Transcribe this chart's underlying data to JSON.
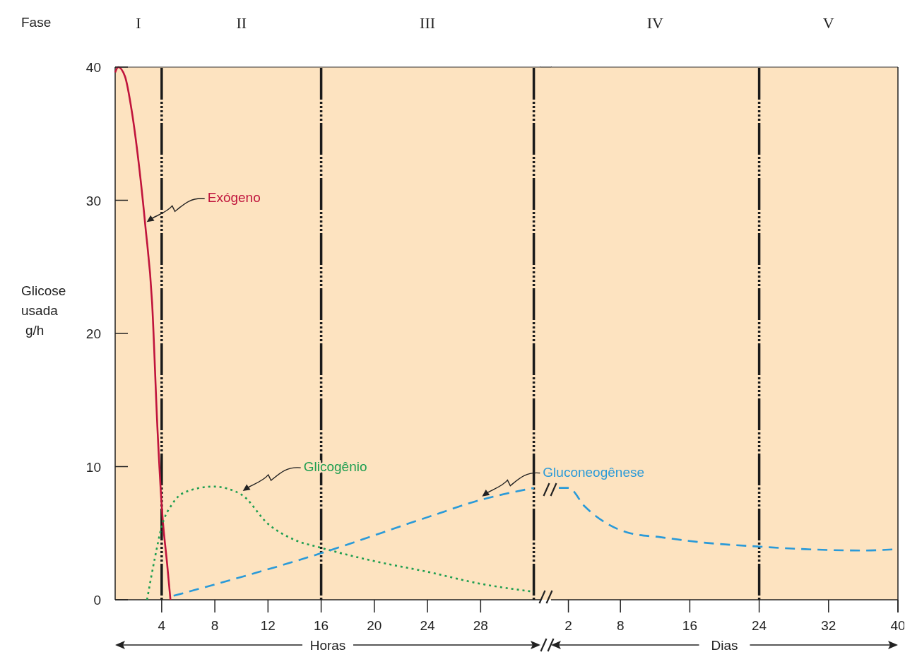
{
  "chart_data": [
    {
      "type": "line",
      "ylabel": "Glicose usada g/h",
      "xlabel": "Horas",
      "annotations": [
        "Fase",
        "I",
        "II",
        "III"
      ],
      "xlim": [
        0.5,
        32.5
      ],
      "xticks": [
        4,
        8,
        12,
        16,
        20,
        24,
        28
      ],
      "ylim": [
        0,
        40
      ],
      "yticks": [
        0,
        10,
        20,
        30,
        40
      ],
      "ref_lines": [
        {
          "axis": "x",
          "value": 4,
          "color": "#1a1a1a",
          "line_style": "dashed"
        },
        {
          "axis": "x",
          "value": 16,
          "color": "#1a1a1a",
          "line_style": "dashed"
        },
        {
          "axis": "x",
          "value": 32,
          "color": "#1a1a1a",
          "line_style": "dashed"
        }
      ],
      "series": [
        {
          "name": "Exógeno",
          "color": "#c0143c",
          "line_style": "solid",
          "x": [
            0.5,
            0.73,
            1.24,
            1.75,
            2.26,
            2.77,
            3.28,
            3.69,
            4.05,
            4.41,
            4.66
          ],
          "values": [
            39.6,
            40,
            39.3,
            36.7,
            32.9,
            28.1,
            22.3,
            12.7,
            6.4,
            2.7,
            0
          ]
        },
        {
          "name": "Glicogênio",
          "color": "#1e9e50",
          "line_style": "dotted",
          "x": [
            2.9,
            3.5,
            4.0,
            4.8,
            5.8,
            7.9,
            10,
            12,
            14,
            16,
            20,
            24,
            28,
            32
          ],
          "values": [
            0,
            3.2,
            5.5,
            7.2,
            8.1,
            8.5,
            7.9,
            5.7,
            4.5,
            3.9,
            2.9,
            2.1,
            1.2,
            0.6
          ]
        },
        {
          "name": "Gluconeogênese",
          "color": "#2a9ad8",
          "line_style": "dashed",
          "x": [
            4.9,
            16,
            24,
            28,
            32
          ],
          "values": [
            0.3,
            3.5,
            6.2,
            7.5,
            8.4
          ]
        }
      ]
    },
    {
      "type": "line",
      "xlabel": "Dias",
      "xlim": [
        0,
        40
      ],
      "xticks": [
        2,
        8,
        16,
        24,
        32,
        40
      ],
      "ylim": [
        0,
        40
      ],
      "yticks": [
        0,
        10,
        20,
        30,
        40
      ],
      "tick_labels": "x",
      "annotations": [
        "IV",
        "V"
      ],
      "ref_lines": [
        {
          "axis": "x",
          "value": 24,
          "color": "#1a1a1a",
          "line_style": "dashed"
        }
      ],
      "series": [
        {
          "color": "#2a9ad8",
          "line_style": "dashed",
          "x": [
            0.9,
            2,
            3.9,
            6.5,
            9.1,
            12.6,
            17.5,
            23.8,
            29.3,
            35.9,
            40
          ],
          "values": [
            8.4,
            8.4,
            7.0,
            5.7,
            5.0,
            4.7,
            4.3,
            4.0,
            3.8,
            3.7,
            3.8
          ]
        }
      ]
    }
  ]
}
